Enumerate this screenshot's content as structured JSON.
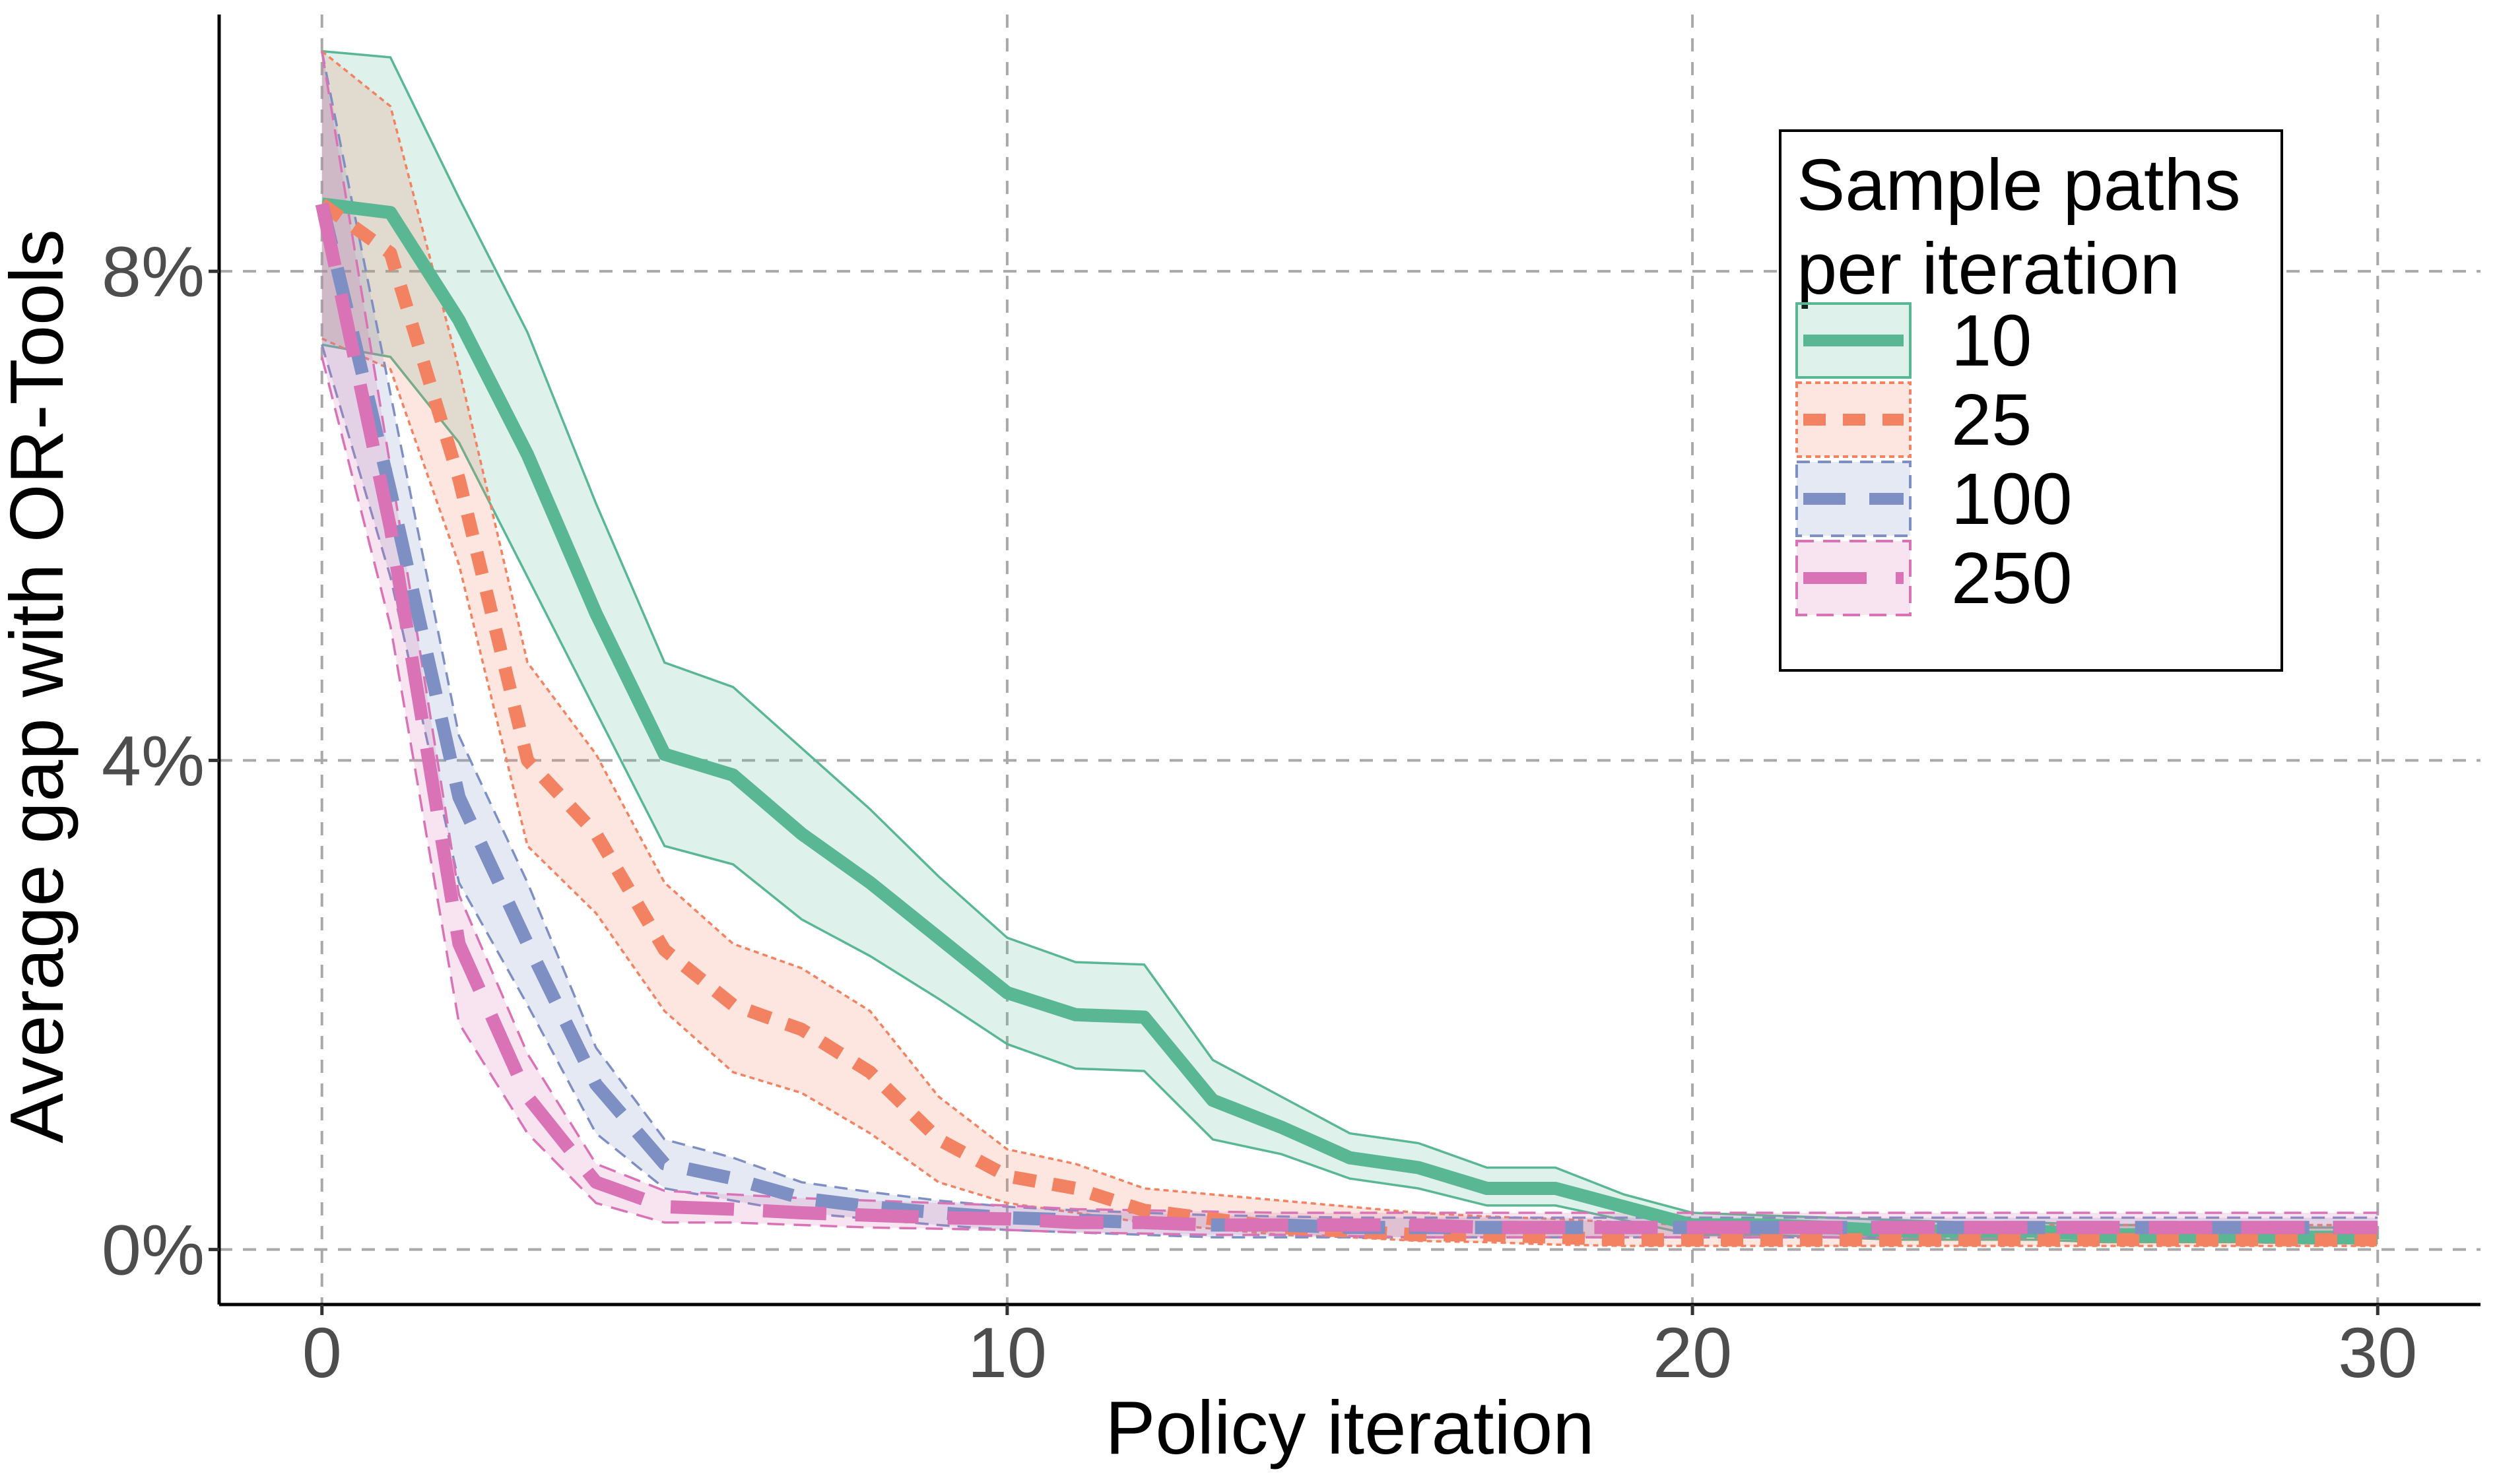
{
  "chart_data": {
    "type": "line",
    "title": "",
    "xlabel": "Policy iteration",
    "ylabel": "Average gap with OR-Tools",
    "xlim": [
      -1.5,
      31.5
    ],
    "ylim": [
      -0.45,
      10.1
    ],
    "x_ticks": [
      0,
      10,
      20,
      30
    ],
    "x_tick_labels": [
      "0",
      "10",
      "20",
      "30"
    ],
    "y_ticks": [
      0,
      4,
      8
    ],
    "y_tick_labels": [
      "0%",
      "4%",
      "8%"
    ],
    "grid": true,
    "legend": {
      "title_lines": [
        "Sample paths",
        "per iteration"
      ],
      "position": "top-right"
    },
    "series": [
      {
        "name": "10",
        "color": "#5ab794",
        "line_style": "solid",
        "x": [
          0,
          1,
          2,
          3,
          4,
          5,
          6,
          7,
          8,
          9,
          10,
          11,
          12,
          13,
          14,
          15,
          16,
          17,
          18,
          19,
          20,
          21,
          22,
          23,
          24,
          25,
          26,
          27,
          28,
          29,
          30
        ],
        "values": [
          8.55,
          8.48,
          7.6,
          6.5,
          5.2,
          4.05,
          3.88,
          3.4,
          3.0,
          2.55,
          2.1,
          1.92,
          1.9,
          1.22,
          1.0,
          0.75,
          0.67,
          0.5,
          0.5,
          0.35,
          0.2,
          0.2,
          0.18,
          0.15,
          0.15,
          0.15,
          0.12,
          0.12,
          0.12,
          0.1,
          0.1
        ],
        "lower": [
          7.4,
          7.3,
          6.6,
          5.5,
          4.4,
          3.3,
          3.15,
          2.7,
          2.4,
          2.05,
          1.68,
          1.48,
          1.46,
          0.9,
          0.78,
          0.58,
          0.5,
          0.36,
          0.36,
          0.24,
          0.12,
          0.12,
          0.1,
          0.08,
          0.08,
          0.08,
          0.06,
          0.06,
          0.06,
          0.05,
          0.05
        ],
        "upper": [
          9.8,
          9.75,
          8.6,
          7.5,
          6.1,
          4.8,
          4.6,
          4.1,
          3.6,
          3.05,
          2.55,
          2.35,
          2.33,
          1.55,
          1.25,
          0.95,
          0.87,
          0.67,
          0.67,
          0.45,
          0.3,
          0.28,
          0.26,
          0.24,
          0.22,
          0.22,
          0.2,
          0.2,
          0.2,
          0.18,
          0.18
        ]
      },
      {
        "name": "25",
        "color": "#f28261",
        "line_style": "dotted",
        "x": [
          0,
          1,
          2,
          3,
          4,
          5,
          6,
          7,
          8,
          9,
          10,
          11,
          12,
          13,
          14,
          15,
          16,
          17,
          18,
          19,
          20,
          21,
          22,
          23,
          24,
          25,
          26,
          27,
          28,
          29,
          30
        ],
        "values": [
          8.55,
          8.15,
          6.3,
          4.0,
          3.4,
          2.45,
          2.0,
          1.8,
          1.45,
          0.9,
          0.6,
          0.5,
          0.32,
          0.25,
          0.18,
          0.15,
          0.12,
          0.12,
          0.1,
          0.08,
          0.08,
          0.08,
          0.08,
          0.08,
          0.08,
          0.08,
          0.08,
          0.08,
          0.08,
          0.08,
          0.08
        ],
        "lower": [
          7.45,
          7.2,
          5.6,
          3.3,
          2.75,
          1.95,
          1.45,
          1.28,
          0.95,
          0.55,
          0.38,
          0.3,
          0.22,
          0.17,
          0.12,
          0.1,
          0.07,
          0.06,
          0.04,
          0.03,
          0.03,
          0.03,
          0.03,
          0.03,
          0.03,
          0.03,
          0.03,
          0.03,
          0.03,
          0.03,
          0.03
        ],
        "upper": [
          9.8,
          9.35,
          7.2,
          4.8,
          4.05,
          3.0,
          2.5,
          2.3,
          1.95,
          1.25,
          0.82,
          0.7,
          0.5,
          0.45,
          0.4,
          0.35,
          0.3,
          0.27,
          0.25,
          0.22,
          0.2,
          0.2,
          0.2,
          0.2,
          0.2,
          0.2,
          0.2,
          0.2,
          0.2,
          0.2,
          0.2
        ]
      },
      {
        "name": "100",
        "color": "#7e8fc3",
        "line_style": "dashed",
        "x": [
          0,
          1,
          2,
          3,
          4,
          5,
          6,
          7,
          8,
          9,
          10,
          11,
          12,
          13,
          14,
          15,
          16,
          17,
          18,
          19,
          20,
          21,
          22,
          23,
          24,
          25,
          26,
          27,
          28,
          29,
          30
        ],
        "values": [
          8.55,
          6.2,
          3.7,
          2.5,
          1.35,
          0.7,
          0.58,
          0.42,
          0.35,
          0.3,
          0.26,
          0.24,
          0.22,
          0.2,
          0.2,
          0.18,
          0.18,
          0.18,
          0.18,
          0.18,
          0.18,
          0.18,
          0.18,
          0.18,
          0.18,
          0.18,
          0.18,
          0.18,
          0.18,
          0.18,
          0.18
        ],
        "lower": [
          7.4,
          5.5,
          3.0,
          2.0,
          0.95,
          0.5,
          0.4,
          0.3,
          0.25,
          0.2,
          0.16,
          0.14,
          0.12,
          0.1,
          0.1,
          0.1,
          0.1,
          0.1,
          0.1,
          0.1,
          0.1,
          0.1,
          0.1,
          0.1,
          0.1,
          0.1,
          0.1,
          0.1,
          0.1,
          0.1,
          0.1
        ],
        "upper": [
          9.8,
          7.0,
          4.2,
          3.0,
          1.65,
          0.9,
          0.75,
          0.55,
          0.47,
          0.4,
          0.35,
          0.32,
          0.3,
          0.28,
          0.27,
          0.26,
          0.26,
          0.26,
          0.26,
          0.26,
          0.26,
          0.26,
          0.26,
          0.26,
          0.26,
          0.26,
          0.26,
          0.26,
          0.26,
          0.26,
          0.26
        ]
      },
      {
        "name": "250",
        "color": "#da72b6",
        "line_style": "longdash",
        "x": [
          0,
          1,
          2,
          3,
          4,
          5,
          6,
          7,
          8,
          9,
          10,
          11,
          12,
          13,
          14,
          15,
          16,
          17,
          18,
          19,
          20,
          21,
          22,
          23,
          24,
          25,
          26,
          27,
          28,
          29,
          30
        ],
        "values": [
          8.55,
          5.9,
          2.5,
          1.25,
          0.55,
          0.35,
          0.33,
          0.3,
          0.28,
          0.26,
          0.25,
          0.22,
          0.22,
          0.2,
          0.2,
          0.2,
          0.2,
          0.18,
          0.18,
          0.18,
          0.18,
          0.18,
          0.18,
          0.18,
          0.18,
          0.18,
          0.18,
          0.18,
          0.18,
          0.18,
          0.18
        ],
        "lower": [
          7.3,
          5.1,
          1.85,
          0.95,
          0.38,
          0.22,
          0.22,
          0.2,
          0.18,
          0.17,
          0.16,
          0.14,
          0.13,
          0.12,
          0.12,
          0.11,
          0.1,
          0.1,
          0.1,
          0.1,
          0.1,
          0.1,
          0.1,
          0.1,
          0.1,
          0.1,
          0.1,
          0.1,
          0.1,
          0.1,
          0.1
        ],
        "upper": [
          9.8,
          6.4,
          2.9,
          1.6,
          0.7,
          0.48,
          0.45,
          0.42,
          0.4,
          0.38,
          0.36,
          0.33,
          0.32,
          0.31,
          0.3,
          0.3,
          0.3,
          0.3,
          0.3,
          0.3,
          0.3,
          0.3,
          0.3,
          0.3,
          0.3,
          0.3,
          0.3,
          0.3,
          0.3,
          0.3,
          0.3
        ]
      }
    ]
  }
}
